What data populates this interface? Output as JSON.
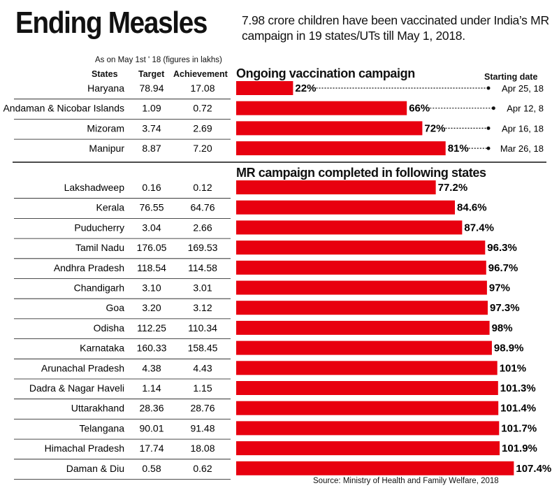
{
  "title": "Ending Measles",
  "subtitle": "7.98 crore children have been vaccinated under India’s MR campaign in 19 states/UTs till May 1, 2018.",
  "note": "As on May 1st ' 18 (figures in lakhs)",
  "columns": {
    "states": "States",
    "target": "Target",
    "achievement": "Achievement",
    "starting_date": "Starting date"
  },
  "source": "Source: Ministry of Health and Family Welfare, 2018",
  "colors": {
    "bar": "#e8000f",
    "rule": "#111111"
  },
  "chart_data": {
    "type": "bar",
    "orientation": "horizontal",
    "sections": [
      {
        "title": "Ongoing vaccination campaign",
        "rows": [
          {
            "state": "Haryana",
            "target": "78.94",
            "achievement": "17.08",
            "pct": 22,
            "label": "22%",
            "start": "Apr 25, 18"
          },
          {
            "state": "Andaman & Nicobar Islands",
            "target": "1.09",
            "achievement": "0.72",
            "pct": 66,
            "label": "66%",
            "start": "Apr 12, 8"
          },
          {
            "state": "Mizoram",
            "target": "3.74",
            "achievement": "2.69",
            "pct": 72,
            "label": "72%",
            "start": "Apr 16, 18"
          },
          {
            "state": "Manipur",
            "target": "8.87",
            "achievement": "7.20",
            "pct": 81,
            "label": "81%",
            "start": "Mar 26, 18"
          }
        ]
      },
      {
        "title": "MR campaign completed in following states",
        "rows": [
          {
            "state": "Lakshadweep",
            "target": "0.16",
            "achievement": "0.12",
            "pct": 77.2,
            "label": "77.2%"
          },
          {
            "state": "Kerala",
            "target": "76.55",
            "achievement": "64.76",
            "pct": 84.6,
            "label": "84.6%"
          },
          {
            "state": "Puducherry",
            "target": "3.04",
            "achievement": "2.66",
            "pct": 87.4,
            "label": "87.4%"
          },
          {
            "state": "Tamil Nadu",
            "target": "176.05",
            "achievement": "169.53",
            "pct": 96.3,
            "label": "96.3%"
          },
          {
            "state": "Andhra Pradesh",
            "target": "118.54",
            "achievement": "114.58",
            "pct": 96.7,
            "label": "96.7%"
          },
          {
            "state": "Chandigarh",
            "target": "3.10",
            "achievement": "3.01",
            "pct": 97,
            "label": "97%"
          },
          {
            "state": "Goa",
            "target": "3.20",
            "achievement": "3.12",
            "pct": 97.3,
            "label": "97.3%"
          },
          {
            "state": "Odisha",
            "target": "112.25",
            "achievement": "110.34",
            "pct": 98,
            "label": "98%"
          },
          {
            "state": "Karnataka",
            "target": "160.33",
            "achievement": "158.45",
            "pct": 98.9,
            "label": "98.9%"
          },
          {
            "state": "Arunachal Pradesh",
            "target": "4.38",
            "achievement": "4.43",
            "pct": 101,
            "label": "101%"
          },
          {
            "state": "Dadra & Nagar Haveli",
            "target": "1.14",
            "achievement": "1.15",
            "pct": 101.3,
            "label": "101.3%"
          },
          {
            "state": "Uttarakhand",
            "target": "28.36",
            "achievement": "28.76",
            "pct": 101.4,
            "label": "101.4%"
          },
          {
            "state": "Telangana",
            "target": "90.01",
            "achievement": "91.48",
            "pct": 101.7,
            "label": "101.7%"
          },
          {
            "state": "Himachal Pradesh",
            "target": "17.74",
            "achievement": "18.08",
            "pct": 101.9,
            "label": "101.9%"
          },
          {
            "state": "Daman & Diu",
            "target": "0.58",
            "achievement": "0.62",
            "pct": 107.4,
            "label": "107.4%"
          }
        ]
      }
    ]
  }
}
